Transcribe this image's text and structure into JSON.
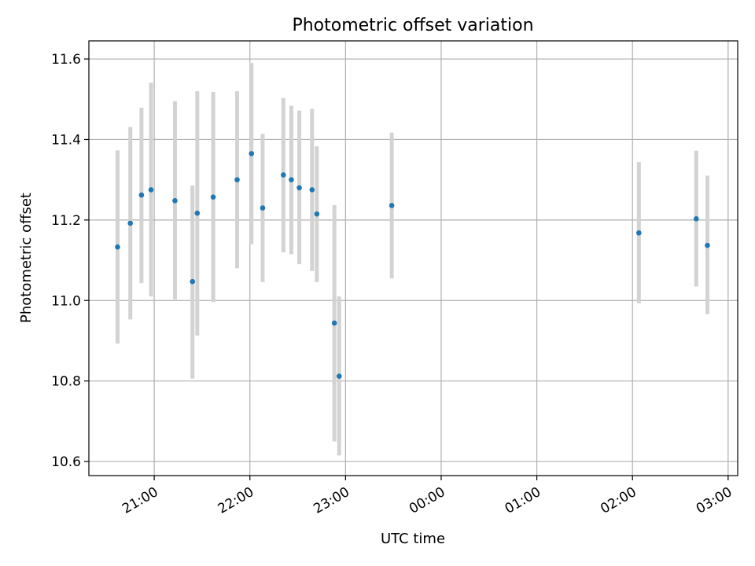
{
  "chart_data": {
    "type": "scatter",
    "title": "Photometric offset variation",
    "xlabel": "UTC time",
    "ylabel": "Photometric offset",
    "grid": true,
    "x_ticks": [
      "21:00",
      "22:00",
      "23:00",
      "00:00",
      "01:00",
      "02:00",
      "03:00"
    ],
    "y_ticks": [
      "10.6",
      "10.8",
      "11.0",
      "11.2",
      "11.4",
      "11.6"
    ],
    "xlim": [
      "20:19",
      "03:06"
    ],
    "ylim": [
      10.565,
      11.645
    ],
    "colors": {
      "point": "#1f77b4",
      "errorbar": "#d3d3d3",
      "grid": "#b0b0b0"
    },
    "points": [
      {
        "x": "20:37",
        "y": 11.133,
        "yerr_low": 10.893,
        "yerr_high": 11.373
      },
      {
        "x": "20:45",
        "y": 11.192,
        "yerr_low": 10.953,
        "yerr_high": 11.431
      },
      {
        "x": "20:52",
        "y": 11.262,
        "yerr_low": 11.043,
        "yerr_high": 11.479
      },
      {
        "x": "20:58",
        "y": 11.275,
        "yerr_low": 11.01,
        "yerr_high": 11.541
      },
      {
        "x": "21:13",
        "y": 11.248,
        "yerr_low": 11.003,
        "yerr_high": 11.495
      },
      {
        "x": "21:24",
        "y": 11.047,
        "yerr_low": 10.806,
        "yerr_high": 11.286
      },
      {
        "x": "21:27",
        "y": 11.217,
        "yerr_low": 10.913,
        "yerr_high": 11.52
      },
      {
        "x": "21:37",
        "y": 11.257,
        "yerr_low": 10.996,
        "yerr_high": 11.518
      },
      {
        "x": "21:52",
        "y": 11.3,
        "yerr_low": 11.08,
        "yerr_high": 11.52
      },
      {
        "x": "22:01",
        "y": 11.365,
        "yerr_low": 11.14,
        "yerr_high": 11.59
      },
      {
        "x": "22:08",
        "y": 11.23,
        "yerr_low": 11.046,
        "yerr_high": 11.414
      },
      {
        "x": "22:21",
        "y": 11.312,
        "yerr_low": 11.12,
        "yerr_high": 11.503
      },
      {
        "x": "22:26",
        "y": 11.3,
        "yerr_low": 11.115,
        "yerr_high": 11.484
      },
      {
        "x": "22:31",
        "y": 11.28,
        "yerr_low": 11.09,
        "yerr_high": 11.472
      },
      {
        "x": "22:39",
        "y": 11.275,
        "yerr_low": 11.073,
        "yerr_high": 11.476
      },
      {
        "x": "22:42",
        "y": 11.215,
        "yerr_low": 11.046,
        "yerr_high": 11.383
      },
      {
        "x": "22:53",
        "y": 10.944,
        "yerr_low": 10.65,
        "yerr_high": 11.237
      },
      {
        "x": "22:56",
        "y": 10.812,
        "yerr_low": 10.615,
        "yerr_high": 11.01
      },
      {
        "x": "23:29",
        "y": 11.236,
        "yerr_low": 11.055,
        "yerr_high": 11.417
      },
      {
        "x": "02:04",
        "y": 11.168,
        "yerr_low": 10.993,
        "yerr_high": 11.344
      },
      {
        "x": "02:40",
        "y": 11.203,
        "yerr_low": 11.035,
        "yerr_high": 11.372
      },
      {
        "x": "02:47",
        "y": 11.137,
        "yerr_low": 10.966,
        "yerr_high": 11.31
      }
    ]
  }
}
